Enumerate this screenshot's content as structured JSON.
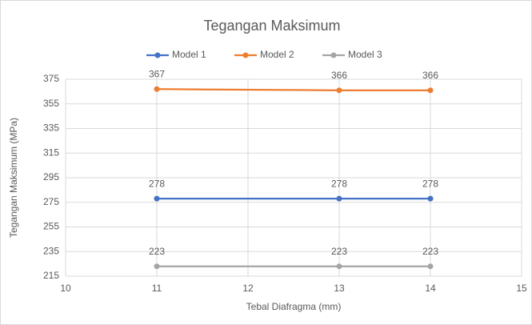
{
  "chart_data": {
    "type": "line",
    "title": "Tegangan Maksimum",
    "x_label": "Tebal Diafragma (mm)",
    "y_label": "Tegangan Maksimum (MPa)",
    "x": [
      11,
      13,
      14
    ],
    "series": [
      {
        "name": "Model 1",
        "color": "#4472c4",
        "values": [
          278,
          278,
          278
        ]
      },
      {
        "name": "Model 2",
        "color": "#ed7d31",
        "values": [
          367,
          366,
          366
        ]
      },
      {
        "name": "Model 3",
        "color": "#a5a5a5",
        "values": [
          223,
          223,
          223
        ]
      }
    ],
    "xlim": [
      10,
      15
    ],
    "xticks": [
      10,
      11,
      12,
      13,
      14,
      15
    ],
    "ylim": [
      215,
      375
    ],
    "yticks": [
      215,
      235,
      255,
      275,
      295,
      315,
      335,
      355,
      375
    ],
    "grid": true,
    "legend": "top"
  }
}
